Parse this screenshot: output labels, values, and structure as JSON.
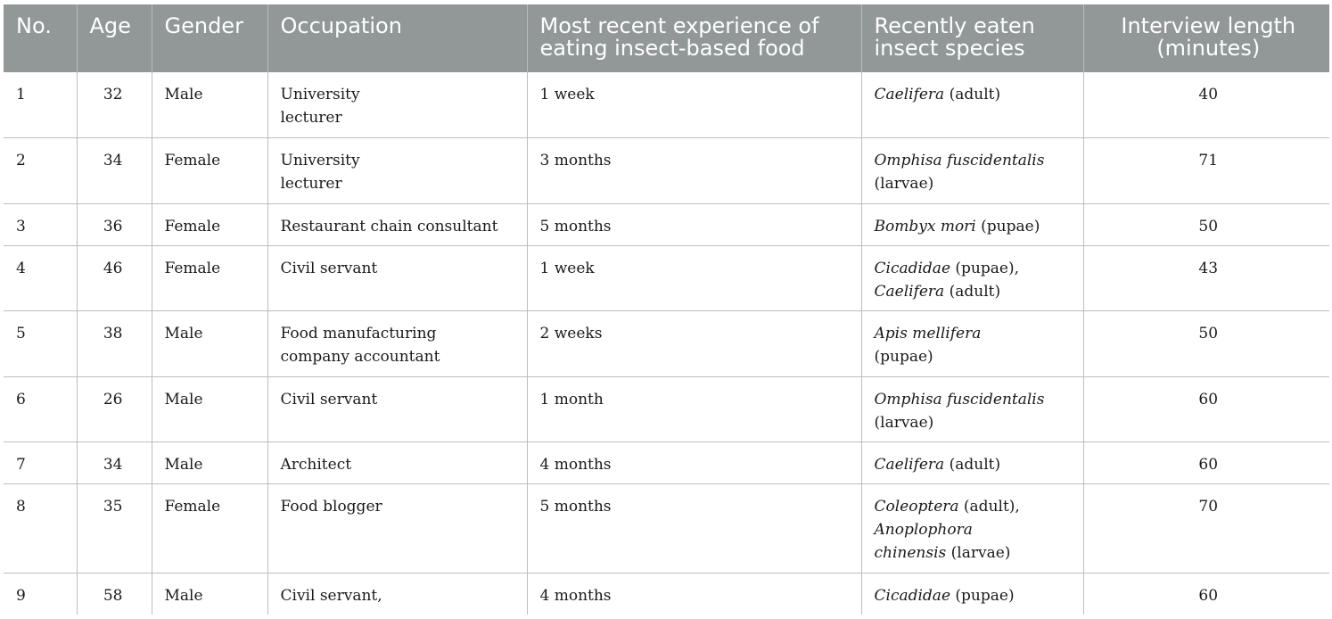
{
  "table": {
    "headers": {
      "no": "No.",
      "age": "Age",
      "gender": "Gender",
      "occupation": "Occupation",
      "experience": [
        "Most recent experience of",
        "eating insect-based food"
      ],
      "species": [
        "Recently eaten",
        "insect species"
      ],
      "length": [
        "Interview length",
        "(minutes)"
      ]
    },
    "rows": [
      {
        "no": "1",
        "age": "32",
        "gender": "Male",
        "occupation": [
          "University",
          "lecturer"
        ],
        "experience": "1 week",
        "species": [
          [
            {
              "t": "Caelifera",
              "i": true
            },
            {
              "t": " (adult)",
              "i": false
            }
          ]
        ],
        "length": "40"
      },
      {
        "no": "2",
        "age": "34",
        "gender": "Female",
        "occupation": [
          "University",
          "lecturer"
        ],
        "experience": "3 months",
        "species": [
          [
            {
              "t": "Omphisa fuscidentalis",
              "i": true
            }
          ],
          [
            {
              "t": "(larvae)",
              "i": false
            }
          ]
        ],
        "length": "71"
      },
      {
        "no": "3",
        "age": "36",
        "gender": "Female",
        "occupation": [
          "Restaurant chain consultant"
        ],
        "experience": "5 months",
        "species": [
          [
            {
              "t": "Bombyx mori",
              "i": true
            },
            {
              "t": " (pupae)",
              "i": false
            }
          ]
        ],
        "length": "50"
      },
      {
        "no": "4",
        "age": "46",
        "gender": "Female",
        "occupation": [
          "Civil servant"
        ],
        "experience": "1 week",
        "species": [
          [
            {
              "t": "Cicadidae",
              "i": true
            },
            {
              "t": " (pupae),",
              "i": false
            }
          ],
          [
            {
              "t": "Caelifera",
              "i": true
            },
            {
              "t": " (adult)",
              "i": false
            }
          ]
        ],
        "length": "43"
      },
      {
        "no": "5",
        "age": "38",
        "gender": "Male",
        "occupation": [
          "Food manufacturing",
          "company accountant"
        ],
        "experience": "2 weeks",
        "species": [
          [
            {
              "t": "Apis mellifera",
              "i": true
            }
          ],
          [
            {
              "t": "(pupae)",
              "i": false
            }
          ]
        ],
        "length": "50"
      },
      {
        "no": "6",
        "age": "26",
        "gender": "Male",
        "occupation": [
          "Civil servant"
        ],
        "experience": "1 month",
        "species": [
          [
            {
              "t": "Omphisa fuscidentalis",
              "i": true
            }
          ],
          [
            {
              "t": "(larvae)",
              "i": false
            }
          ]
        ],
        "length": "60"
      },
      {
        "no": "7",
        "age": "34",
        "gender": "Male",
        "occupation": [
          "Architect"
        ],
        "experience": "4 months",
        "species": [
          [
            {
              "t": "Caelifera",
              "i": true
            },
            {
              "t": " (adult)",
              "i": false
            }
          ]
        ],
        "length": "60"
      },
      {
        "no": "8",
        "age": "35",
        "gender": "Female",
        "occupation": [
          "Food blogger"
        ],
        "experience": "5 months",
        "species": [
          [
            {
              "t": "Coleoptera",
              "i": true
            },
            {
              "t": " (adult),",
              "i": false
            }
          ],
          [
            {
              "t": "Anoplophora",
              "i": true
            }
          ],
          [
            {
              "t": "chinensis",
              "i": true
            },
            {
              "t": " (larvae)",
              "i": false
            }
          ]
        ],
        "length": "70"
      },
      {
        "no": "9",
        "age": "58",
        "gender": "Male",
        "occupation": [
          "Civil servant,"
        ],
        "experience": "4 months",
        "species": [
          [
            {
              "t": "Cicadidae",
              "i": true
            },
            {
              "t": " (pupae)",
              "i": false
            }
          ]
        ],
        "length": "60"
      }
    ]
  }
}
